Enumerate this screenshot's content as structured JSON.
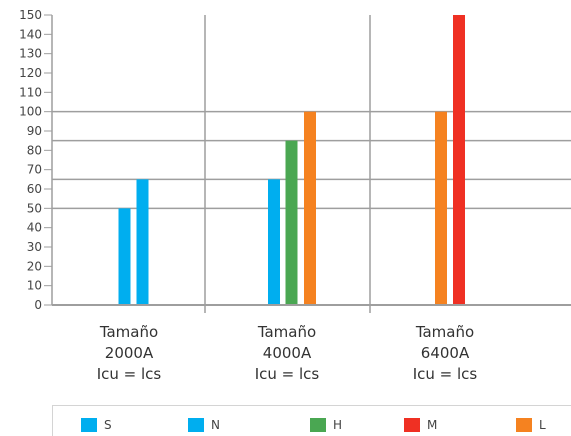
{
  "chart_data": {
    "type": "bar",
    "ylim": [
      0,
      150
    ],
    "y_ticks": [
      "0",
      "10",
      "20",
      "30",
      "40",
      "50",
      "60",
      "70",
      "80",
      "90",
      "100",
      "110",
      "120",
      "130",
      "140",
      "150"
    ],
    "grid": "horizontal at 50, 65, 85, 100",
    "categories": [
      {
        "lines": [
          "Tamaño",
          "2000A",
          "Icu = lcs"
        ]
      },
      {
        "lines": [
          "Tamaño",
          "4000A",
          "Icu = lcs"
        ]
      },
      {
        "lines": [
          "Tamaño",
          "6400A",
          "Icu = lcs"
        ]
      }
    ],
    "series": [
      {
        "name": "S",
        "color": "#00aeef"
      },
      {
        "name": "N",
        "color": "#00aeef"
      },
      {
        "name": "H",
        "color": "#4aa752"
      },
      {
        "name": "M",
        "color": "#ef3023"
      },
      {
        "name": "L",
        "color": "#f58220"
      }
    ],
    "bars": [
      {
        "category": 0,
        "series": "S",
        "value": 50
      },
      {
        "category": 0,
        "series": "N",
        "value": 65
      },
      {
        "category": 1,
        "series": "N",
        "value": 65
      },
      {
        "category": 1,
        "series": "H",
        "value": 85
      },
      {
        "category": 1,
        "series": "L",
        "value": 100
      },
      {
        "category": 2,
        "series": "L",
        "value": 100
      },
      {
        "category": 2,
        "series": "M",
        "value": 150
      }
    ]
  }
}
